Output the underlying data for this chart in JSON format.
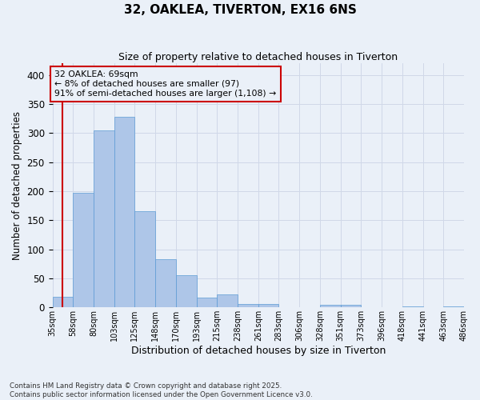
{
  "title1": "32, OAKLEA, TIVERTON, EX16 6NS",
  "title2": "Size of property relative to detached houses in Tiverton",
  "xlabel": "Distribution of detached houses by size in Tiverton",
  "ylabel": "Number of detached properties",
  "bar_values": [
    18,
    197,
    305,
    328,
    165,
    83,
    55,
    17,
    22,
    6,
    6,
    0,
    0,
    5,
    4,
    0,
    0,
    2,
    0,
    2
  ],
  "bin_labels": [
    "35sqm",
    "58sqm",
    "80sqm",
    "103sqm",
    "125sqm",
    "148sqm",
    "170sqm",
    "193sqm",
    "215sqm",
    "238sqm",
    "261sqm",
    "283sqm",
    "306sqm",
    "328sqm",
    "351sqm",
    "373sqm",
    "396sqm",
    "418sqm",
    "441sqm",
    "463sqm",
    "486sqm"
  ],
  "bar_color": "#aec6e8",
  "bar_edge_color": "#5b9bd5",
  "grid_color": "#d0d8e8",
  "bg_color": "#eaf0f8",
  "annotation_box_color": "#cc0000",
  "vline_color": "#cc0000",
  "vline_x": 0.5,
  "annotation_text": "32 OAKLEA: 69sqm\n← 8% of detached houses are smaller (97)\n91% of semi-detached houses are larger (1,108) →",
  "footer_text": "Contains HM Land Registry data © Crown copyright and database right 2025.\nContains public sector information licensed under the Open Government Licence v3.0.",
  "ylim": [
    0,
    420
  ],
  "yticks": [
    0,
    50,
    100,
    150,
    200,
    250,
    300,
    350,
    400
  ]
}
